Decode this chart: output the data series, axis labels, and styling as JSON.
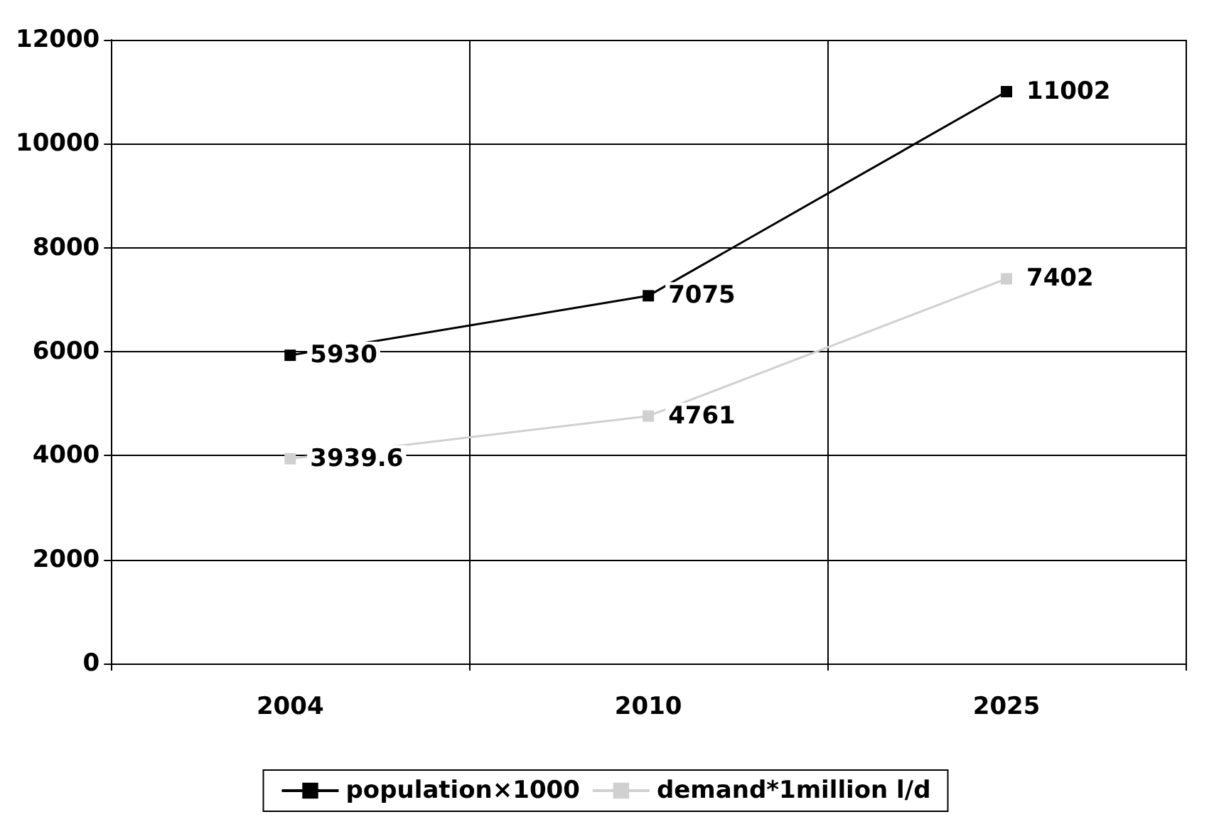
{
  "chart_data": {
    "type": "line",
    "categories": [
      "2004",
      "2010",
      "2025"
    ],
    "series": [
      {
        "name": "population×1000",
        "color": "#000000",
        "values": [
          5930,
          7075,
          11002
        ]
      },
      {
        "name": "demand*1million l/d",
        "color": "#d0d0d0",
        "values": [
          3939.6,
          4761,
          7402
        ]
      }
    ],
    "ylim": [
      0,
      12000
    ],
    "yticks": [
      0,
      2000,
      4000,
      6000,
      8000,
      10000,
      12000
    ],
    "grid": true,
    "legend": "bottom",
    "marker": "square",
    "line_style": "solid",
    "data_labels": true
  }
}
